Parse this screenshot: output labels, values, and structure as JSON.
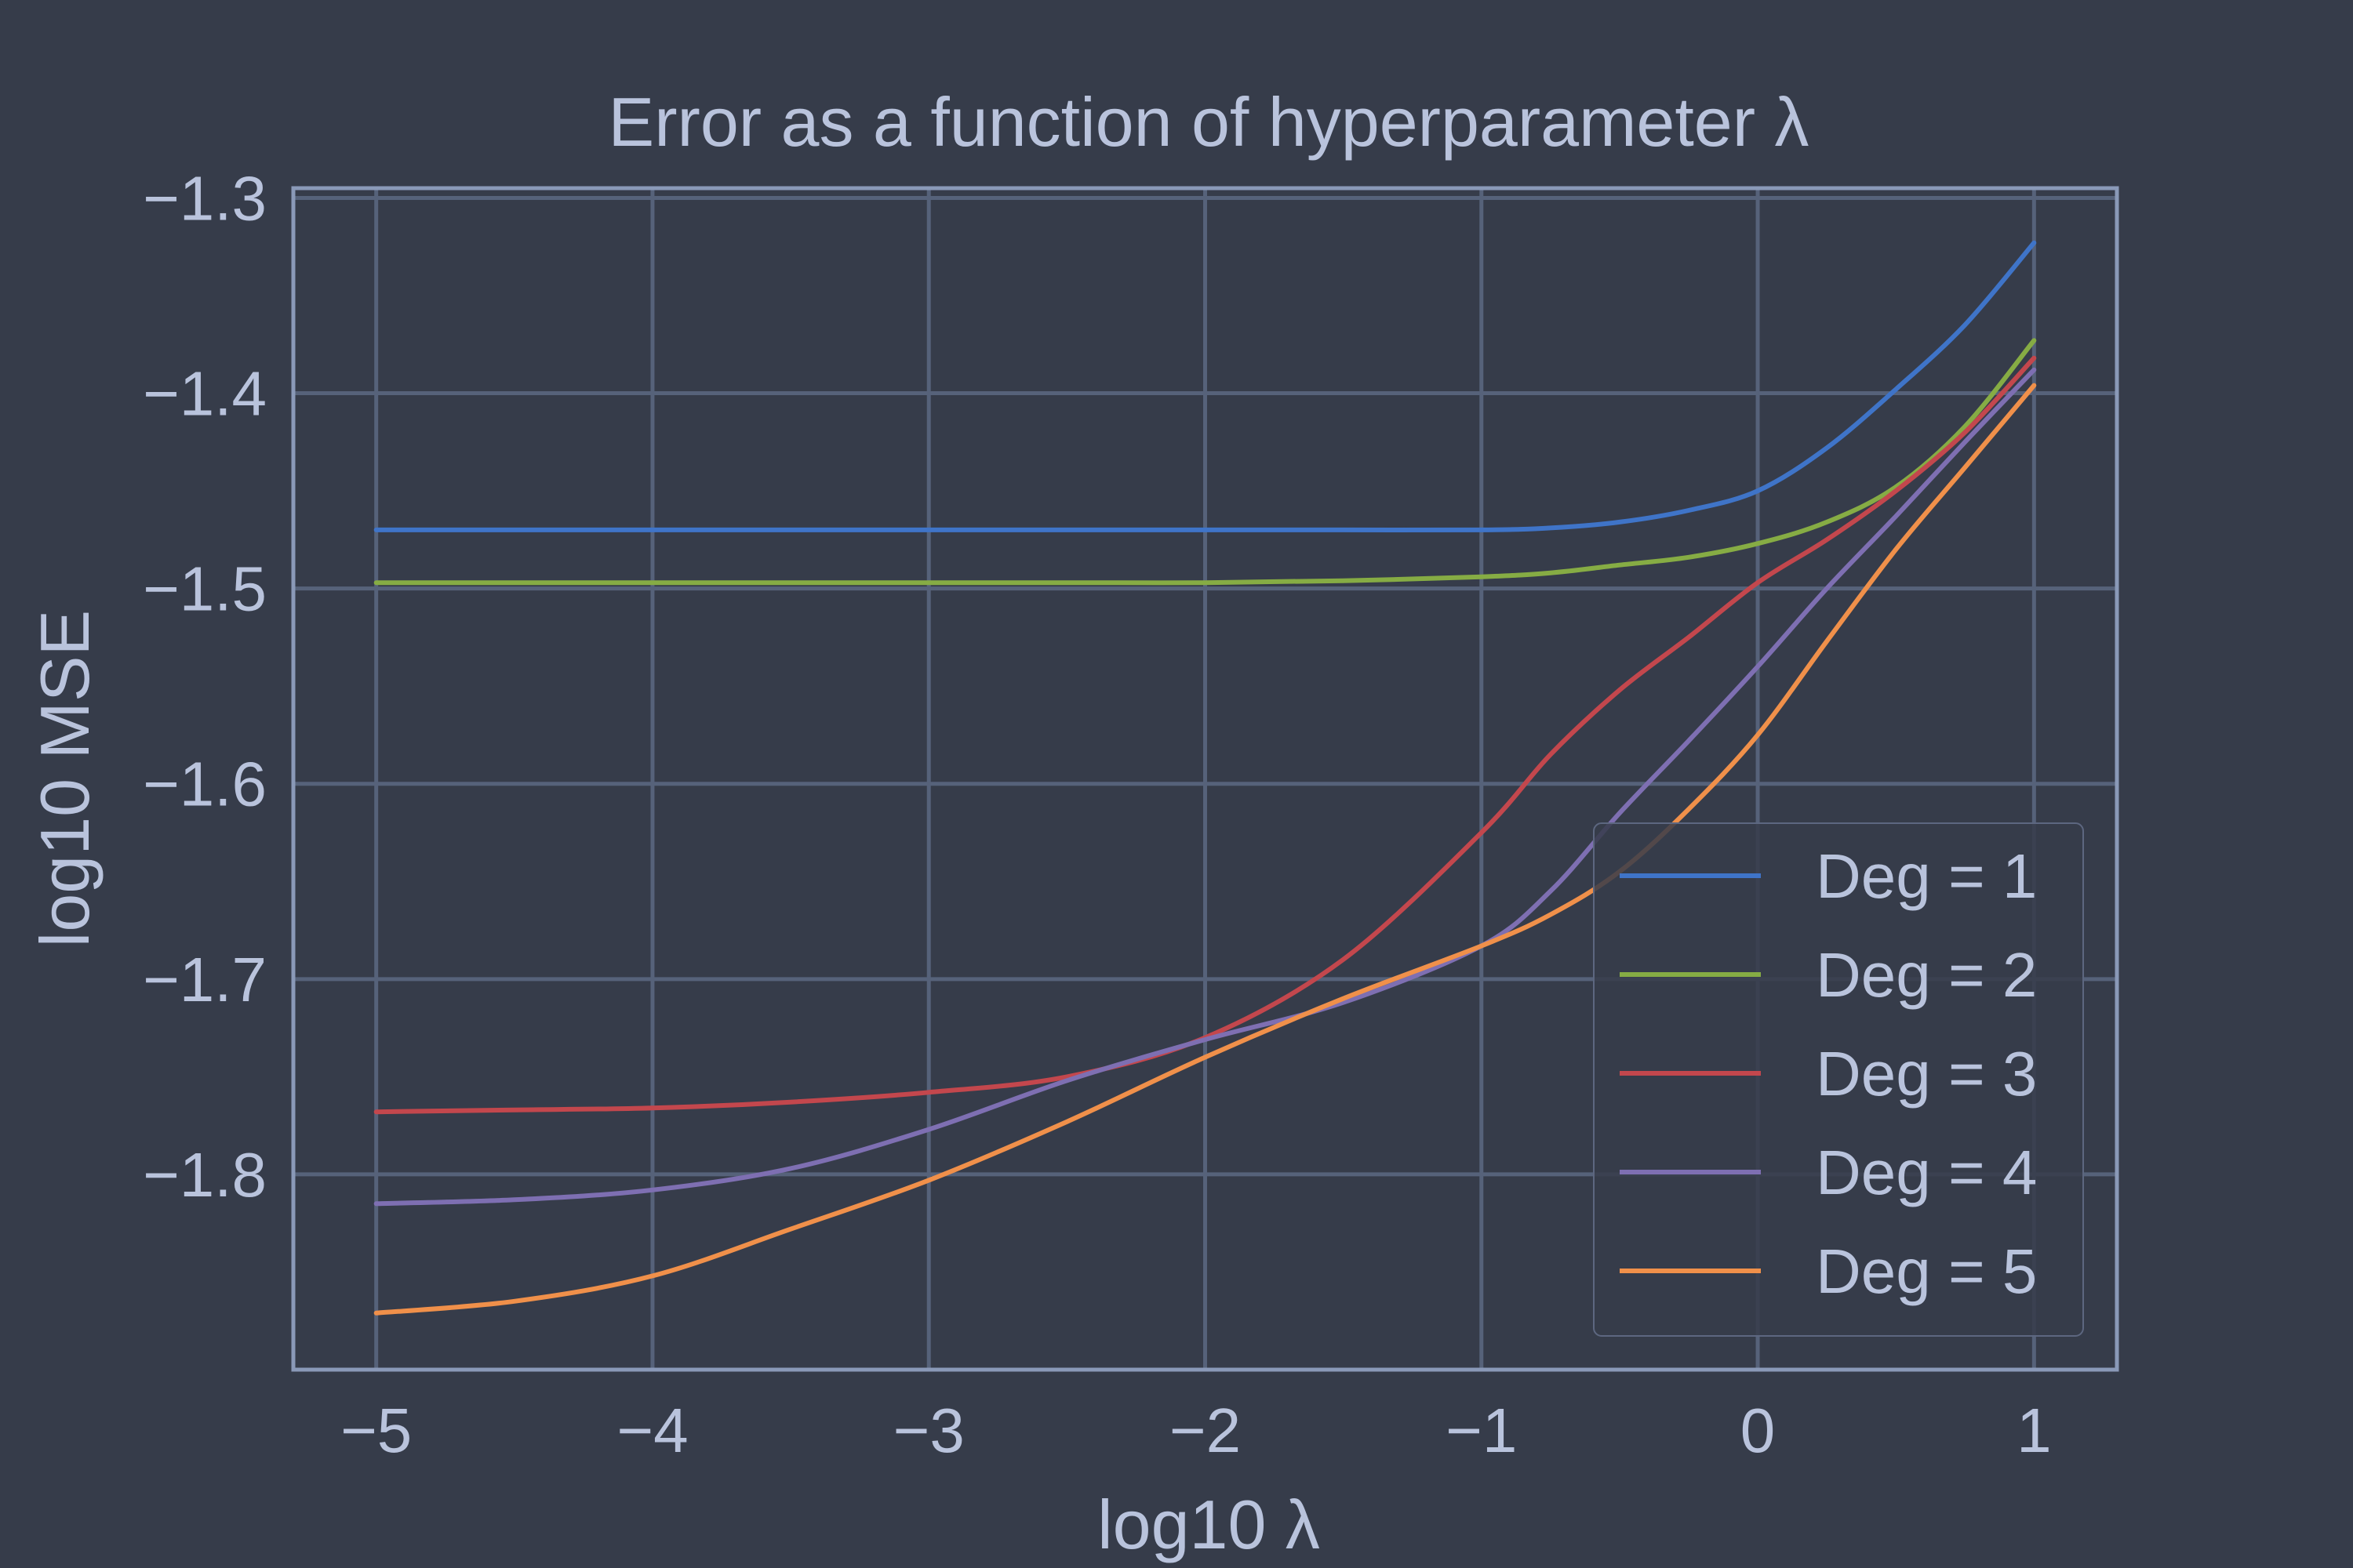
{
  "chart_data": {
    "type": "line",
    "title": "Error as a function of hyperparameter λ",
    "xlabel": "log10 λ",
    "ylabel": "log10 MSE",
    "xlim": [
      -5.3,
      1.3
    ],
    "ylim": [
      -1.9,
      -1.295
    ],
    "xticks": [
      -5,
      -4,
      -3,
      -2,
      -1,
      0,
      1
    ],
    "xtick_labels": [
      "−5",
      "−4",
      "−3",
      "−2",
      "−1",
      "0",
      "1"
    ],
    "yticks": [
      -1.3,
      -1.4,
      -1.5,
      -1.6,
      -1.7,
      -1.8
    ],
    "ytick_labels": [
      "−1.3",
      "−1.4",
      "−1.5",
      "−1.6",
      "−1.7",
      "−1.8"
    ],
    "grid": true,
    "legend_position": "lower-right",
    "x": [
      -5,
      -4.5,
      -4,
      -3.5,
      -3,
      -2.5,
      -2,
      -1.5,
      -1,
      -0.75,
      -0.5,
      -0.25,
      0,
      0.25,
      0.5,
      0.75,
      1
    ],
    "series": [
      {
        "name": "Deg = 1",
        "color": "#3f74c8",
        "values": [
          -1.47,
          -1.47,
          -1.47,
          -1.47,
          -1.47,
          -1.47,
          -1.47,
          -1.47,
          -1.47,
          -1.469,
          -1.466,
          -1.46,
          -1.45,
          -1.428,
          -1.398,
          -1.365,
          -1.323
        ]
      },
      {
        "name": "Deg = 2",
        "color": "#86ac44",
        "values": [
          -1.497,
          -1.497,
          -1.497,
          -1.497,
          -1.497,
          -1.497,
          -1.497,
          -1.496,
          -1.494,
          -1.492,
          -1.488,
          -1.484,
          -1.477,
          -1.466,
          -1.448,
          -1.417,
          -1.373
        ]
      },
      {
        "name": "Deg = 3",
        "color": "#c3474d",
        "values": [
          -1.768,
          -1.767,
          -1.766,
          -1.763,
          -1.758,
          -1.75,
          -1.73,
          -1.69,
          -1.625,
          -1.585,
          -1.552,
          -1.525,
          -1.497,
          -1.475,
          -1.45,
          -1.42,
          -1.382
        ]
      },
      {
        "name": "Deg = 4",
        "color": "#7e6fb2",
        "values": [
          -1.815,
          -1.813,
          -1.808,
          -1.797,
          -1.777,
          -1.752,
          -1.731,
          -1.712,
          -1.683,
          -1.655,
          -1.615,
          -1.578,
          -1.54,
          -1.5,
          -1.463,
          -1.425,
          -1.388
        ]
      },
      {
        "name": "Deg = 5",
        "color": "#f0904a",
        "values": [
          -1.871,
          -1.865,
          -1.852,
          -1.828,
          -1.803,
          -1.773,
          -1.74,
          -1.71,
          -1.683,
          -1.667,
          -1.645,
          -1.613,
          -1.575,
          -1.527,
          -1.48,
          -1.438,
          -1.396
        ]
      }
    ]
  }
}
